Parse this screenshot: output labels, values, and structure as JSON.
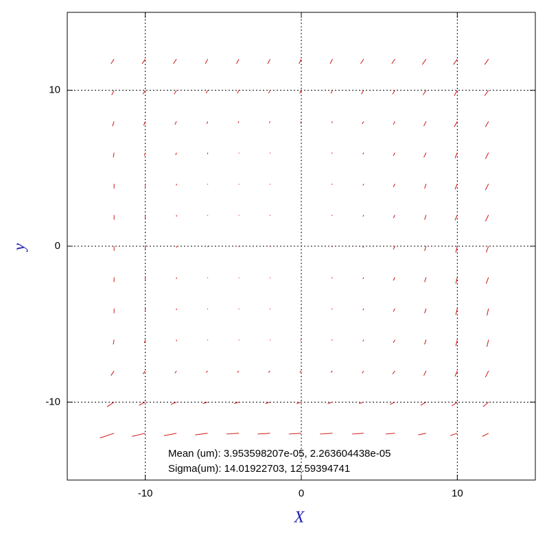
{
  "chart_data": {
    "type": "quiver",
    "xlabel": "X",
    "ylabel": "y",
    "xlim": [
      -15,
      15
    ],
    "ylim": [
      -15,
      15
    ],
    "xticks": [
      -10,
      0,
      10
    ],
    "yticks": [
      -10,
      0,
      10
    ],
    "grid": true,
    "color": "#d01010",
    "annotations": [
      "Mean (um): 3.953598207e-05, 2.263604438e-05",
      "Sigma(um): 14.01922703, 12.59394741"
    ],
    "x": [
      -12,
      -10,
      -8,
      -6,
      -4,
      -2,
      0,
      2,
      4,
      6,
      8,
      10,
      12
    ],
    "y": [
      12,
      10,
      8,
      6,
      4,
      2,
      0,
      -2,
      -4,
      -6,
      -8,
      -10,
      -12
    ],
    "u": [
      [
        -0.2,
        -0.2,
        -0.2,
        -0.15,
        -0.15,
        -0.15,
        -0.15,
        -0.15,
        -0.2,
        -0.2,
        -0.25,
        -0.25,
        -0.25
      ],
      [
        -0.15,
        -0.15,
        -0.15,
        -0.1,
        -0.1,
        -0.1,
        -0.1,
        -0.1,
        -0.15,
        -0.15,
        -0.2,
        -0.2,
        -0.25
      ],
      [
        -0.1,
        -0.1,
        -0.1,
        -0.05,
        -0.05,
        -0.05,
        -0.05,
        -0.05,
        -0.1,
        -0.1,
        -0.15,
        -0.2,
        -0.2
      ],
      [
        -0.05,
        -0.05,
        -0.05,
        0,
        0,
        0,
        0,
        -0.05,
        -0.05,
        -0.1,
        -0.15,
        -0.15,
        -0.2
      ],
      [
        0,
        0,
        0,
        0,
        0,
        0,
        0,
        -0.05,
        -0.05,
        -0.1,
        -0.1,
        -0.15,
        -0.2
      ],
      [
        0,
        0,
        0,
        0,
        0,
        0,
        0,
        -0.05,
        -0.05,
        -0.1,
        -0.1,
        -0.15,
        -0.2
      ],
      [
        0,
        0,
        0,
        0,
        0,
        0,
        0,
        -0.05,
        -0.05,
        -0.1,
        -0.1,
        -0.1,
        -0.15
      ],
      [
        0,
        0,
        0,
        0,
        0,
        0,
        0,
        -0.05,
        -0.05,
        -0.1,
        -0.1,
        -0.1,
        -0.15
      ],
      [
        0,
        0,
        0,
        0,
        0,
        0,
        0,
        -0.05,
        -0.05,
        -0.1,
        -0.1,
        -0.1,
        -0.1
      ],
      [
        -0.05,
        -0.05,
        0,
        0,
        0,
        0,
        -0.05,
        -0.05,
        -0.05,
        -0.1,
        -0.1,
        -0.1,
        -0.1
      ],
      [
        -0.2,
        -0.15,
        -0.1,
        -0.1,
        -0.1,
        -0.1,
        -0.1,
        -0.1,
        -0.1,
        -0.15,
        -0.15,
        -0.15,
        -0.2
      ],
      [
        -0.45,
        -0.4,
        -0.35,
        -0.3,
        -0.3,
        -0.3,
        -0.3,
        -0.3,
        -0.3,
        -0.3,
        -0.35,
        -0.35,
        -0.35
      ],
      [
        -0.9,
        -0.85,
        -0.8,
        -0.8,
        -0.8,
        -0.8,
        -0.8,
        -0.8,
        -0.75,
        -0.6,
        -0.5,
        -0.45,
        -0.4
      ]
    ],
    "v": [
      [
        -0.3,
        -0.3,
        -0.3,
        -0.3,
        -0.3,
        -0.3,
        -0.3,
        -0.3,
        -0.3,
        -0.3,
        -0.35,
        -0.35,
        -0.35
      ],
      [
        -0.3,
        -0.25,
        -0.25,
        -0.2,
        -0.2,
        -0.2,
        -0.2,
        -0.2,
        -0.25,
        -0.25,
        -0.3,
        -0.35,
        -0.35
      ],
      [
        -0.3,
        -0.25,
        -0.2,
        -0.15,
        -0.1,
        -0.1,
        -0.1,
        -0.1,
        -0.15,
        -0.2,
        -0.3,
        -0.35,
        -0.35
      ],
      [
        -0.3,
        -0.2,
        -0.15,
        -0.1,
        -0.05,
        -0.05,
        -0.05,
        -0.05,
        -0.1,
        -0.2,
        -0.3,
        -0.35,
        -0.4
      ],
      [
        -0.3,
        -0.2,
        -0.1,
        -0.05,
        -0.05,
        -0.05,
        -0.05,
        -0.05,
        -0.1,
        -0.2,
        -0.3,
        -0.35,
        -0.4
      ],
      [
        -0.3,
        -0.2,
        -0.1,
        -0.05,
        -0.05,
        -0.05,
        -0.05,
        -0.05,
        -0.1,
        -0.2,
        -0.3,
        -0.35,
        -0.4
      ],
      [
        -0.3,
        -0.2,
        -0.1,
        -0.05,
        -0.05,
        -0.05,
        -0.05,
        -0.05,
        -0.1,
        -0.2,
        -0.3,
        -0.4,
        -0.4
      ],
      [
        -0.3,
        -0.2,
        -0.1,
        -0.05,
        -0.05,
        -0.05,
        -0.05,
        -0.05,
        -0.1,
        -0.2,
        -0.3,
        -0.4,
        -0.4
      ],
      [
        -0.3,
        -0.2,
        -0.1,
        -0.05,
        -0.05,
        -0.05,
        -0.05,
        -0.05,
        -0.1,
        -0.2,
        -0.3,
        -0.4,
        -0.45
      ],
      [
        -0.3,
        -0.2,
        -0.1,
        -0.05,
        -0.05,
        -0.05,
        -0.05,
        -0.05,
        -0.1,
        -0.2,
        -0.3,
        -0.4,
        -0.45
      ],
      [
        -0.3,
        -0.2,
        -0.15,
        -0.1,
        -0.1,
        -0.1,
        -0.1,
        -0.1,
        -0.15,
        -0.2,
        -0.3,
        -0.35,
        -0.4
      ],
      [
        -0.3,
        -0.2,
        -0.15,
        -0.1,
        -0.1,
        -0.1,
        -0.1,
        -0.1,
        -0.1,
        -0.15,
        -0.2,
        -0.25,
        -0.3
      ],
      [
        -0.3,
        -0.2,
        -0.15,
        -0.1,
        -0.05,
        -0.05,
        -0.05,
        -0.05,
        -0.05,
        -0.05,
        -0.1,
        -0.15,
        -0.2
      ]
    ]
  }
}
